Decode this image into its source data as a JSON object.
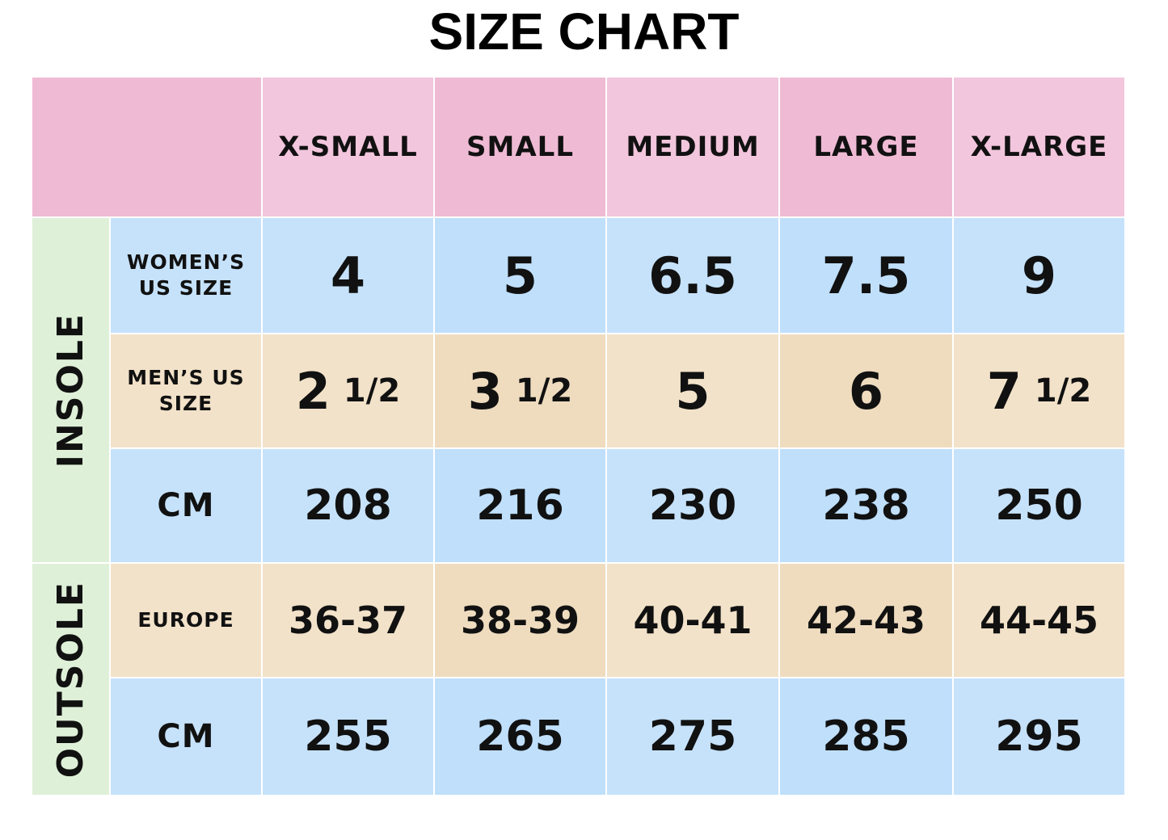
{
  "title": "SIZE CHART",
  "table": {
    "columns": [
      "X-SMALL",
      "SMALL",
      "MEDIUM",
      "LARGE",
      "X-LARGE"
    ],
    "groups": [
      {
        "label": "INSOLE",
        "rows": [
          {
            "label": "WOMEN’S US SIZE",
            "cells": [
              "4",
              "5",
              "6.5",
              "7.5",
              "9"
            ]
          },
          {
            "label": "MEN’S US SIZE",
            "cells": [
              {
                "whole": "2",
                "fraction": "1/2"
              },
              {
                "whole": "3",
                "fraction": "1/2"
              },
              "5",
              "6",
              {
                "whole": "7",
                "fraction": "1/2"
              }
            ]
          },
          {
            "label": "CM",
            "cells": [
              "208",
              "216",
              "230",
              "238",
              "250"
            ]
          }
        ]
      },
      {
        "label": "OUTSOLE",
        "rows": [
          {
            "label": "EUROPE",
            "cells": [
              "36-37",
              "38-39",
              "40-41",
              "42-43",
              "44-45"
            ]
          },
          {
            "label": "CM",
            "cells": [
              "255",
              "265",
              "275",
              "285",
              "295"
            ]
          }
        ]
      }
    ]
  }
}
